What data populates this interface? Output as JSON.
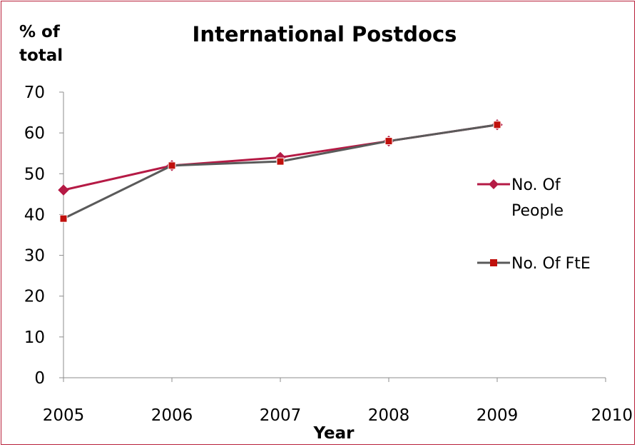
{
  "chart_data": {
    "type": "line",
    "title": "International Postdocs",
    "ylabel_line1": "% of",
    "ylabel_line2": "total",
    "xlabel": "Year",
    "x_ticks": [
      "2005",
      "2006",
      "2007",
      "2008",
      "2009",
      "2010"
    ],
    "y_ticks": [
      "0",
      "10",
      "20",
      "30",
      "40",
      "50",
      "60",
      "70"
    ],
    "xlim": [
      2005,
      2010
    ],
    "ylim": [
      0,
      70
    ],
    "grid": false,
    "legend_position": "right",
    "x": [
      2005,
      2006,
      2007,
      2008,
      2009
    ],
    "series": [
      {
        "legend_line1": "No. Of",
        "legend_line2": "People",
        "values": [
          46,
          52,
          54,
          58,
          62
        ],
        "color": "#b51a45",
        "marker": "diamond"
      },
      {
        "legend_line1": "No. Of FtE",
        "values": [
          39,
          52,
          53,
          58,
          62
        ],
        "color": "#5a5a5a",
        "marker_color": "#c0100c",
        "marker": "square"
      }
    ]
  }
}
